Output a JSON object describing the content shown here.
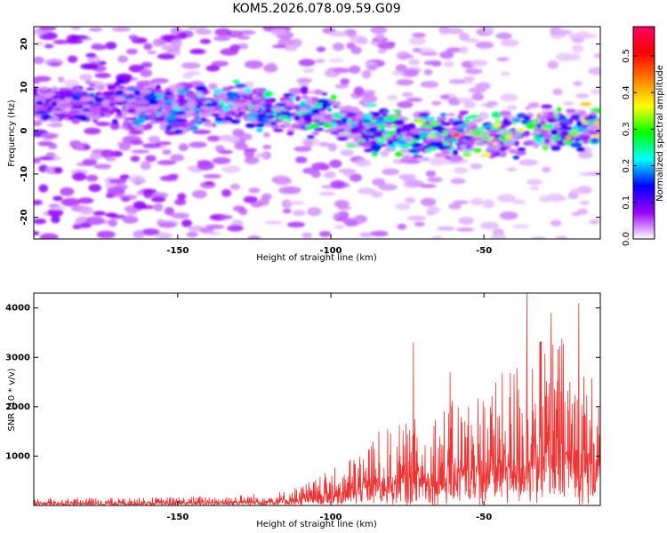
{
  "title": "KOM5.2026.078.09.59.G09",
  "colors": {
    "series_line": "#ee3333",
    "axis": "#000000"
  },
  "chart_data": [
    {
      "type": "heatmap",
      "title": "KOM5.2026.078.09.59.G09",
      "xlabel": "Height of straight line (km)",
      "ylabel": "Frequency (Hz)",
      "xlim": [
        -197,
        -12
      ],
      "ylim": [
        -25,
        24
      ],
      "xticks": [
        -150,
        -100,
        -50
      ],
      "yticks": [
        20,
        10,
        0,
        -10,
        -20
      ],
      "ridge": {
        "x": [
          -197,
          -170,
          -150,
          -135,
          -120,
          -105,
          -95,
          -85,
          -75,
          -65,
          -55,
          -45,
          -35,
          -25,
          -12
        ],
        "y_center": [
          6,
          6,
          5,
          6,
          5,
          4,
          2,
          0,
          -1,
          -1,
          -1,
          -2,
          1,
          0,
          1
        ]
      },
      "peak": {
        "x": -59,
        "y": -1,
        "amplitude": 0.58
      },
      "colorbar": {
        "label": "Normalized spectral amplitude",
        "range": [
          0,
          0.58
        ],
        "ticks": [
          0,
          0.1,
          0.2,
          0.3,
          0.4,
          0.5
        ],
        "colors": [
          "#ffffff",
          "#9900ff",
          "#0000ff",
          "#00ffff",
          "#00ff00",
          "#ffff00",
          "#ff8000",
          "#ff0000",
          "#ff0066"
        ]
      }
    },
    {
      "type": "line",
      "xlabel": "Height of straight line (km)",
      "ylabel": "SNR (10 * v/v)",
      "xlim": [
        -197,
        -12
      ],
      "ylim": [
        0,
        4300
      ],
      "xticks": [
        -150,
        -100,
        -50
      ],
      "yticks": [
        1000,
        2000,
        3000,
        4000
      ],
      "series": [
        {
          "name": "SNR",
          "envelope_x": [
            -197,
            -160,
            -130,
            -115,
            -105,
            -95,
            -85,
            -75,
            -65,
            -55,
            -45,
            -35,
            -25,
            -18,
            -12
          ],
          "envelope_y": [
            150,
            160,
            220,
            300,
            550,
            900,
            1500,
            1700,
            2000,
            2300,
            2600,
            3400,
            3500,
            3000,
            2500
          ],
          "spikes": [
            {
              "x": -73,
              "y": 3300
            },
            {
              "x": -61,
              "y": 2700
            },
            {
              "x": -36,
              "y": 4300
            },
            {
              "x": -19,
              "y": 4100
            },
            {
              "x": -28,
              "y": 3900
            }
          ]
        }
      ]
    }
  ]
}
